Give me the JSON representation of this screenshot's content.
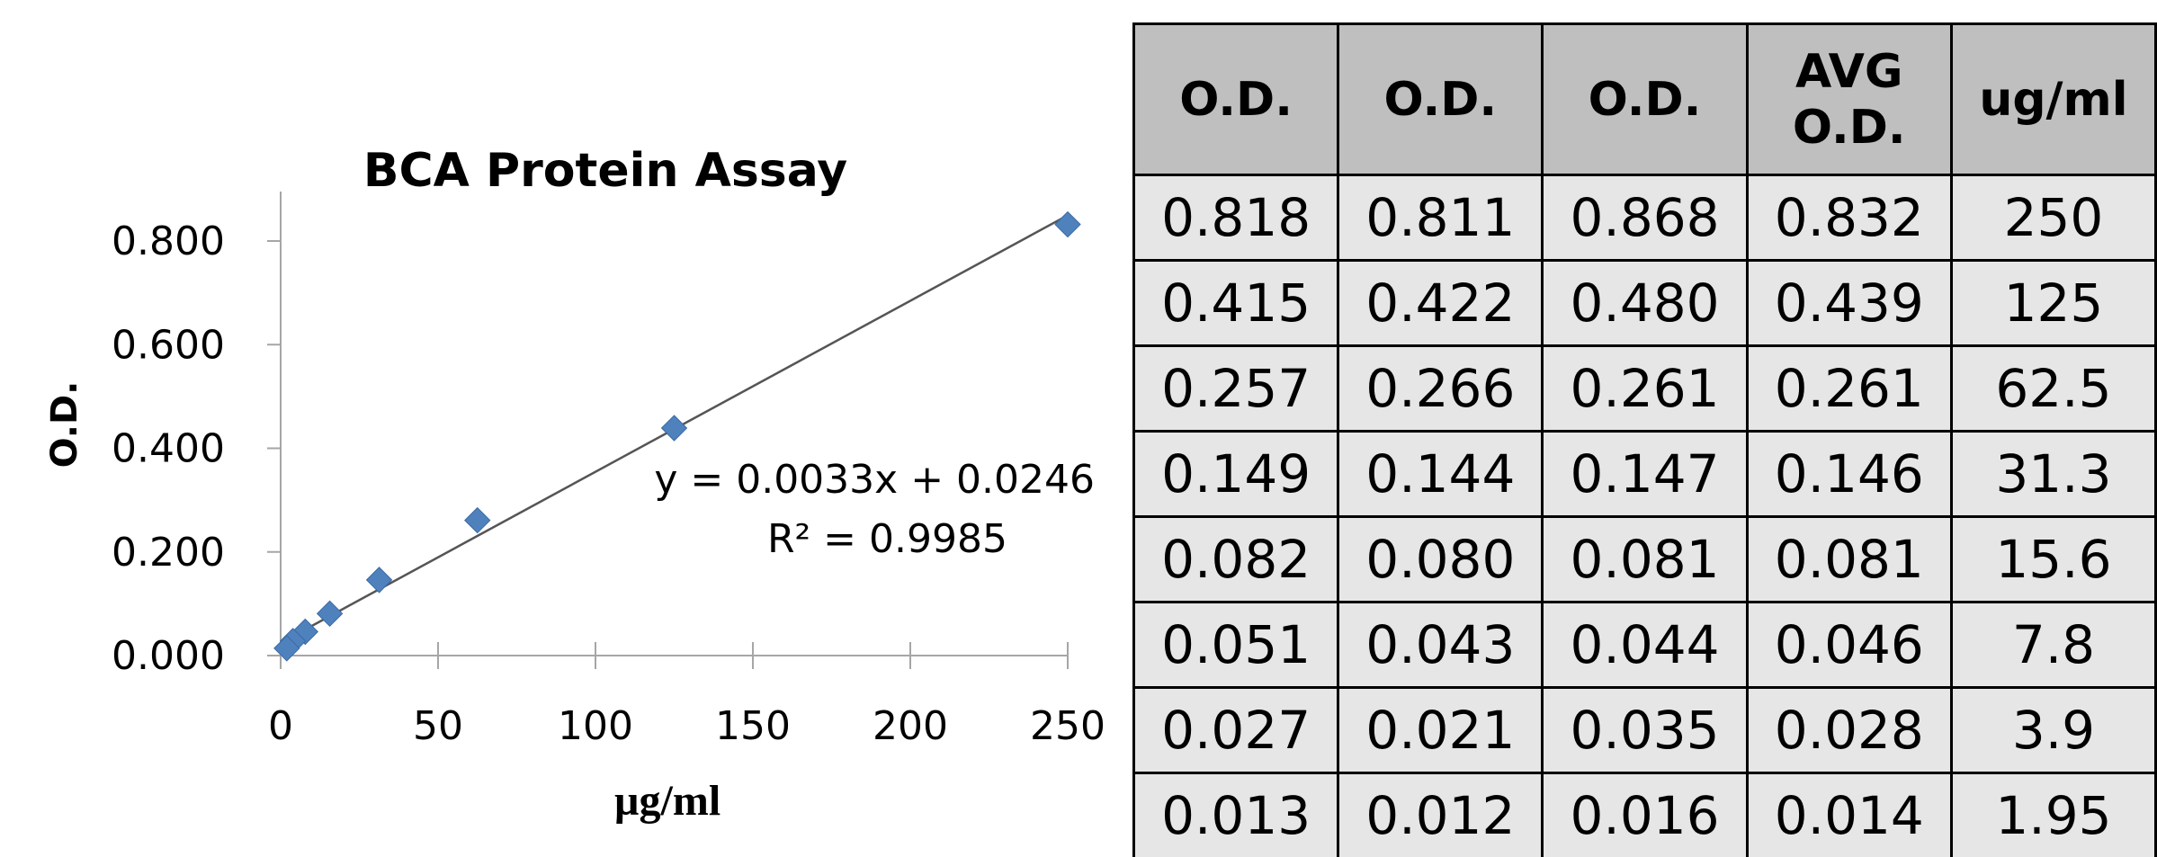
{
  "chart_data": {
    "type": "scatter",
    "title": "BCA Protein Assay",
    "xlabel": "µg/ml",
    "ylabel": "O.D.",
    "xlim": [
      0,
      250
    ],
    "ylim": [
      0,
      0.8
    ],
    "x_ticks": [
      "0",
      "50",
      "100",
      "150",
      "200",
      "250"
    ],
    "y_ticks": [
      "0.000",
      "0.200",
      "0.400",
      "0.600",
      "0.800"
    ],
    "series": [
      {
        "x": [
          250,
          125,
          62.5,
          31.3,
          15.6,
          7.8,
          3.9,
          1.95
        ],
        "y": [
          0.832,
          0.439,
          0.261,
          0.146,
          0.081,
          0.046,
          0.028,
          0.014
        ]
      }
    ],
    "trendline": {
      "slope": 0.0033,
      "intercept": 0.0246
    },
    "annotation": {
      "equation": "y = 0.0033x + 0.0246",
      "r2": "R² = 0.9985"
    },
    "marker_color": "#4f81bd"
  },
  "table": {
    "headers": [
      "O.D.",
      "O.D.",
      "O.D.",
      "AVG O.D.",
      "ug/ml"
    ],
    "rows": [
      [
        "0.818",
        "0.811",
        "0.868",
        "0.832",
        "250"
      ],
      [
        "0.415",
        "0.422",
        "0.480",
        "0.439",
        "125"
      ],
      [
        "0.257",
        "0.266",
        "0.261",
        "0.261",
        "62.5"
      ],
      [
        "0.149",
        "0.144",
        "0.147",
        "0.146",
        "31.3"
      ],
      [
        "0.082",
        "0.080",
        "0.081",
        "0.081",
        "15.6"
      ],
      [
        "0.051",
        "0.043",
        "0.044",
        "0.046",
        "7.8"
      ],
      [
        "0.027",
        "0.021",
        "0.035",
        "0.028",
        "3.9"
      ],
      [
        "0.013",
        "0.012",
        "0.016",
        "0.014",
        "1.95"
      ]
    ]
  }
}
